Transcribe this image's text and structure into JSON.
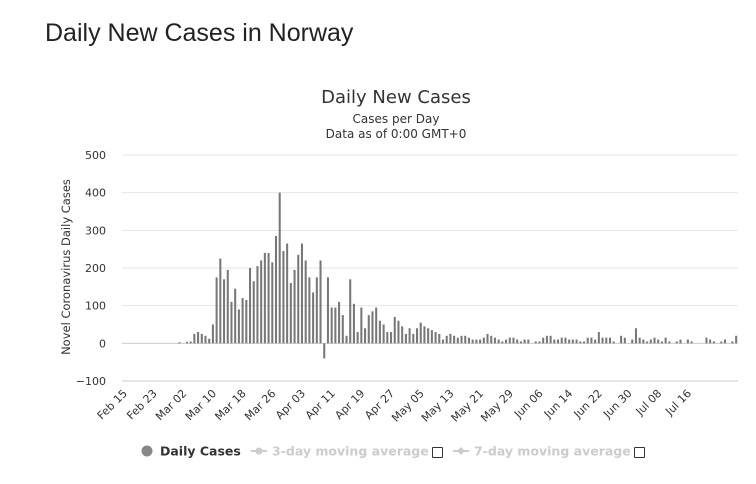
{
  "page": {
    "heading": "Daily New Cases in Norway"
  },
  "chart_data": {
    "type": "bar",
    "title": "Daily New Cases",
    "subtitle_line1": "Cases per Day",
    "subtitle_line2": "Data as of 0:00 GMT+0",
    "ylabel": "Novel Coronavirus Daily Cases",
    "xlabel": "",
    "ylim": [
      -100,
      500
    ],
    "yticks": [
      "500",
      "400",
      "300",
      "200",
      "100",
      "0",
      "−100"
    ],
    "ytick_values": [
      500,
      400,
      300,
      200,
      100,
      0,
      -100
    ],
    "x_tick_labels": [
      "Feb 15",
      "Feb 23",
      "Mar 02",
      "Mar 10",
      "Mar 18",
      "Mar 26",
      "Apr 03",
      "Apr 11",
      "Apr 19",
      "Apr 27",
      "May 05",
      "May 13",
      "May 21",
      "May 29",
      "Jun 06",
      "Jun 14",
      "Jun 22",
      "Jun 30",
      "Jul 08",
      "Jul 16"
    ],
    "x_tick_day_index": [
      0,
      8,
      16,
      24,
      32,
      40,
      48,
      56,
      64,
      72,
      80,
      88,
      96,
      104,
      112,
      120,
      128,
      136,
      144,
      152
    ],
    "x_start": "Feb 15",
    "grid": true,
    "bar_color": "#777777",
    "series": [
      {
        "name": "Daily Cases",
        "values": [
          0,
          0,
          0,
          0,
          0,
          0,
          0,
          0,
          0,
          0,
          0,
          0,
          0,
          0,
          0,
          3,
          0,
          4,
          5,
          25,
          30,
          25,
          20,
          12,
          50,
          175,
          225,
          170,
          195,
          110,
          145,
          90,
          120,
          115,
          200,
          165,
          205,
          220,
          240,
          240,
          215,
          285,
          400,
          245,
          265,
          160,
          195,
          235,
          265,
          220,
          175,
          135,
          175,
          220,
          -40,
          175,
          95,
          95,
          110,
          75,
          20,
          170,
          105,
          30,
          95,
          40,
          75,
          85,
          95,
          60,
          50,
          30,
          30,
          70,
          60,
          45,
          25,
          40,
          25,
          40,
          55,
          45,
          40,
          35,
          30,
          25,
          10,
          20,
          25,
          20,
          15,
          20,
          20,
          15,
          10,
          10,
          10,
          15,
          25,
          20,
          15,
          10,
          5,
          10,
          15,
          15,
          10,
          5,
          10,
          10,
          0,
          5,
          5,
          15,
          20,
          20,
          10,
          10,
          15,
          15,
          10,
          10,
          10,
          5,
          5,
          15,
          15,
          10,
          30,
          15,
          15,
          15,
          5,
          0,
          20,
          15,
          0,
          10,
          40,
          15,
          10,
          5,
          10,
          15,
          10,
          5,
          15,
          5,
          0,
          5,
          10,
          0,
          10,
          5,
          0,
          0,
          0,
          15,
          10,
          5,
          0,
          5,
          10,
          0,
          5,
          20
        ]
      }
    ],
    "legend": {
      "placement": "bottom-center",
      "items": [
        {
          "label": "Daily Cases",
          "active": true,
          "color": "#888888"
        },
        {
          "label": "3-day moving average",
          "active": false,
          "color": "#cccccc"
        },
        {
          "label": "7-day moving average",
          "active": false,
          "color": "#cccccc"
        }
      ]
    }
  }
}
